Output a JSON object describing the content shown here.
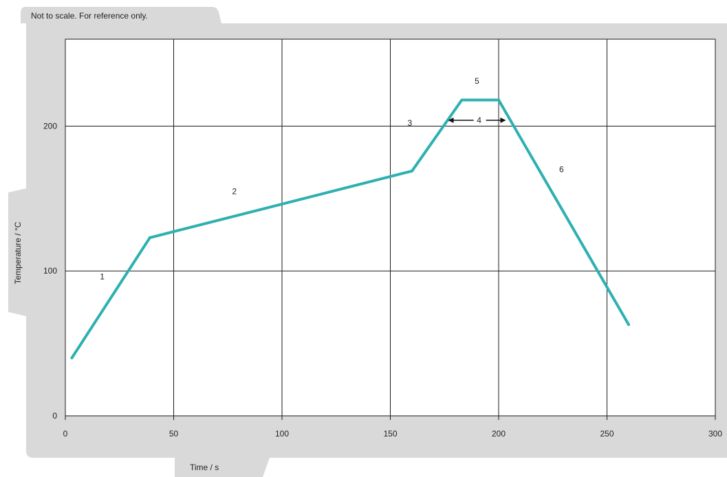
{
  "note": "Not to scale. For reference only.",
  "chart_data": {
    "type": "line",
    "xlabel": "Time / s",
    "ylabel": "Temperature / °C",
    "xlim": [
      0,
      300
    ],
    "ylim": [
      0,
      260
    ],
    "x_ticks": [
      0,
      50,
      100,
      150,
      200,
      250,
      300
    ],
    "y_ticks": [
      0,
      100,
      200
    ],
    "grid": true,
    "series_color": "#2eb0b0",
    "series": [
      {
        "x": [
          3,
          39,
          160,
          183,
          200,
          260
        ],
        "y": [
          40,
          123,
          169,
          218,
          218,
          63
        ]
      }
    ],
    "zone_labels": [
      {
        "text": "1",
        "x": 17,
        "y": 96
      },
      {
        "text": "2",
        "x": 78,
        "y": 155
      },
      {
        "text": "3",
        "x": 159,
        "y": 202
      },
      {
        "text": "4",
        "x": 191,
        "y": 204
      },
      {
        "text": "5",
        "x": 190,
        "y": 231
      },
      {
        "text": "6",
        "x": 229,
        "y": 170
      }
    ],
    "arrow_span": {
      "x": [
        177,
        203
      ],
      "y": 204
    }
  }
}
